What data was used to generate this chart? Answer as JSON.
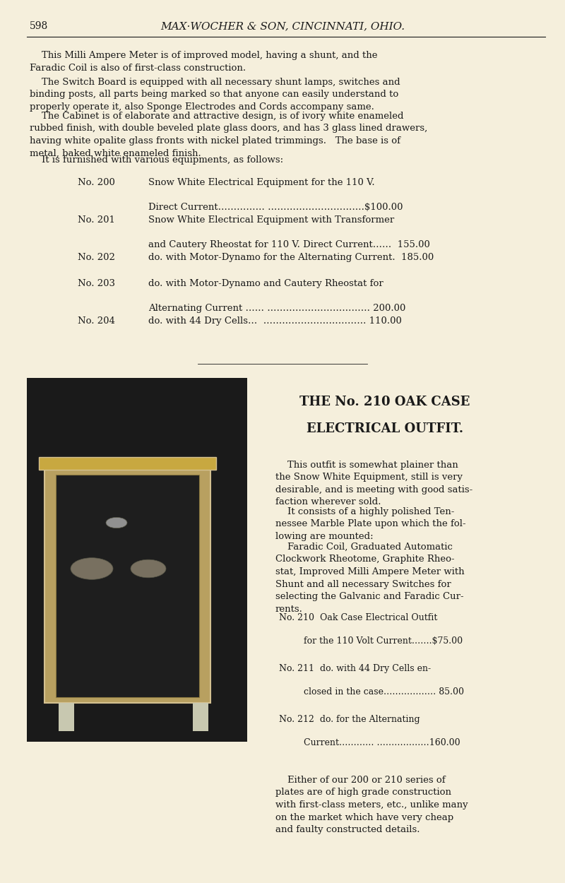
{
  "bg_color": "#f5efdc",
  "text_color": "#1a1a1a",
  "page_number": "598",
  "header_title": "MAX·WOCHER & SON, CINCINNATI, OHIO.",
  "para1_indent": "    This Milli Ampere Meter is of improved model, having a shunt, and the\nFaradic Coil is also of first-class construction.",
  "para2_indent": "    The Switch Board is equipped with all necessary shunt lamps, switches and\nbinding posts, all parts being marked so that anyone can easily understand to\nproperly operate it, also Sponge Electrodes and Cords accompany same.",
  "para3_indent": "    The Cabinet is of elaborate and attractive design, is of ivory white enameled\nrubbed finish, with double beveled plate glass doors, and has 3 glass lined drawers,\nhaving white opalite glass fronts with nickel plated trimmings.   The base is of\nmetal, baked white enameled finish.",
  "para4_indent": "    It is furnished with various equipments, as follows:",
  "section2_title1": "THE No. 210 OAK CASE",
  "section2_title2": "ELECTRICAL OUTFIT.",
  "section2_para1": "    This outfit is somewhat plainer than\nthe Snow White Equipment, still is very\ndesirable, and is meeting with good satis-\nfaction wherever sold.",
  "section2_para2": "    It consists of a highly polished Ten-\nnessee Marble Plate upon which the fol-\nlowing are mounted:",
  "section2_para3": "    Faradic Coil, Graduated Automatic\nClockwork Rheotome, Graphite Rheo-\nstat, Improved Milli Ampere Meter with\nShunt and all necessary Switches for\nselecting the Galvanic and Faradic Cur-\nrents.",
  "section2_para4": "    Either of our 200 or 210 series of\nplates are of high grade construction\nwith first-class meters, etc., unlike many\non the market which have very cheap\nand faulty constructed details.",
  "fig_width": 8.0,
  "fig_height": 12.5
}
